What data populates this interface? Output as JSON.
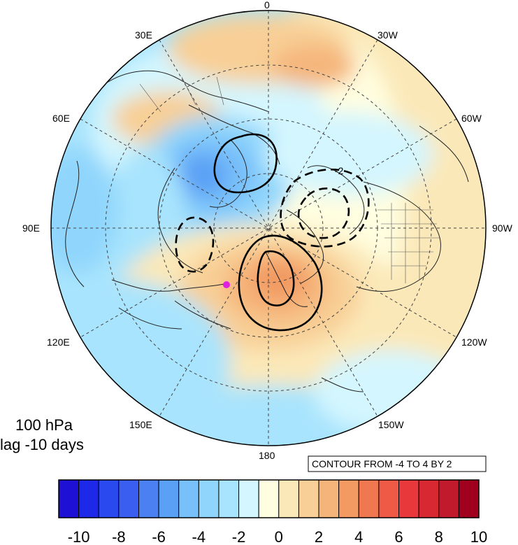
{
  "plot": {
    "level_label": "100 hPa",
    "lag_label": "lag -10 days",
    "contour_info": "CONTOUR FROM -4 TO 4 BY 2",
    "highlight_color": "#e020e0"
  },
  "longitude_labels": {
    "top": "0",
    "lon_30w": "30W",
    "lon_60w": "60W",
    "lon_90w": "90W",
    "lon_120w": "120W",
    "lon_150w": "150W",
    "bottom": "180",
    "lon_150e": "150E",
    "lon_120e": "120E",
    "lon_90e": "90E",
    "lon_60e": "60E",
    "lon_30e": "30E"
  },
  "contour_line_labels": {
    "minus_two": "-2"
  },
  "colorbar": {
    "colors": [
      "#1f10d6",
      "#1e28e8",
      "#2a4aef",
      "#3a5ff0",
      "#4a80f2",
      "#5aa0f5",
      "#78c0fa",
      "#90d6fc",
      "#a8e4fd",
      "#d4f6fe",
      "#fffee0",
      "#fbe8b8",
      "#f8cf96",
      "#f5b57a",
      "#f29a62",
      "#f07850",
      "#ee5a46",
      "#e8383c",
      "#d82832",
      "#c01a2c",
      "#a0001e"
    ],
    "tick_labels": [
      "-10",
      "-8",
      "-6",
      "-4",
      "-2",
      "0",
      "2",
      "4",
      "6",
      "8",
      "10"
    ]
  }
}
